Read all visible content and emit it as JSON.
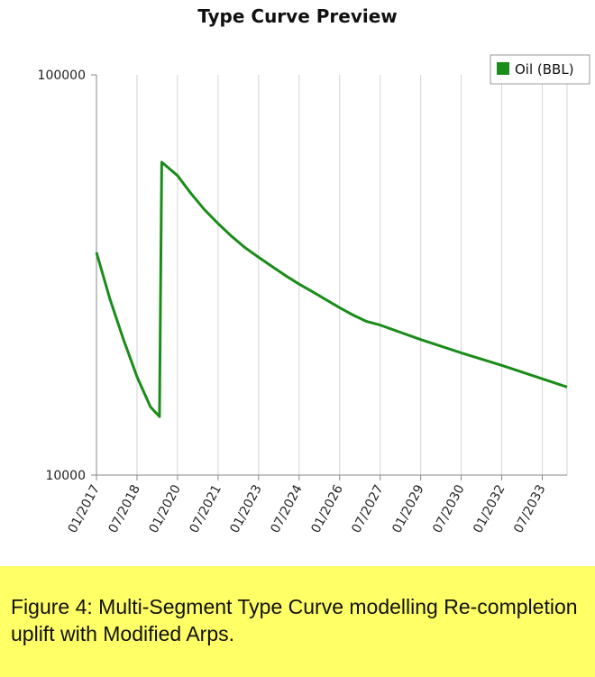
{
  "chart_data": {
    "type": "line",
    "title": "Type Curve Preview",
    "xlabel": "",
    "ylabel": "",
    "y_scale": "log",
    "ylim": [
      10000,
      100000
    ],
    "y_ticks": [
      "100000",
      "10000"
    ],
    "x_ticks": [
      "01/2017",
      "07/2018",
      "01/2020",
      "07/2021",
      "01/2023",
      "07/2024",
      "01/2026",
      "07/2027",
      "01/2029",
      "07/2030",
      "01/2032",
      "07/2033"
    ],
    "x_range": [
      "01/2017",
      "06/2034"
    ],
    "grid": "vertical",
    "legend_position": "top-right",
    "series": [
      {
        "name": "Oil (BBL)",
        "color": "#1a8c1a",
        "points": [
          {
            "x": "01/2017",
            "y": 36000
          },
          {
            "x": "07/2017",
            "y": 27500
          },
          {
            "x": "01/2018",
            "y": 21800
          },
          {
            "x": "07/2018",
            "y": 17600
          },
          {
            "x": "01/2019",
            "y": 14800
          },
          {
            "x": "05/2019",
            "y": 14000
          },
          {
            "x": "06/2019",
            "y": 60500
          },
          {
            "x": "01/2020",
            "y": 56000
          },
          {
            "x": "07/2020",
            "y": 50500
          },
          {
            "x": "01/2021",
            "y": 46000
          },
          {
            "x": "07/2021",
            "y": 42500
          },
          {
            "x": "01/2022",
            "y": 39500
          },
          {
            "x": "07/2022",
            "y": 37000
          },
          {
            "x": "01/2023",
            "y": 35000
          },
          {
            "x": "07/2023",
            "y": 33200
          },
          {
            "x": "01/2024",
            "y": 31500
          },
          {
            "x": "07/2024",
            "y": 30000
          },
          {
            "x": "01/2025",
            "y": 28700
          },
          {
            "x": "07/2025",
            "y": 27400
          },
          {
            "x": "01/2026",
            "y": 26200
          },
          {
            "x": "07/2026",
            "y": 25100
          },
          {
            "x": "01/2027",
            "y": 24200
          },
          {
            "x": "07/2027",
            "y": 23700
          },
          {
            "x": "01/2029",
            "y": 21800
          },
          {
            "x": "07/2030",
            "y": 20200
          },
          {
            "x": "01/2032",
            "y": 18800
          },
          {
            "x": "07/2033",
            "y": 17400
          },
          {
            "x": "06/2034",
            "y": 16600
          }
        ]
      }
    ]
  },
  "caption": "Figure 4: Multi-Segment Type Curve modelling Re-completion uplift with Modified Arps."
}
